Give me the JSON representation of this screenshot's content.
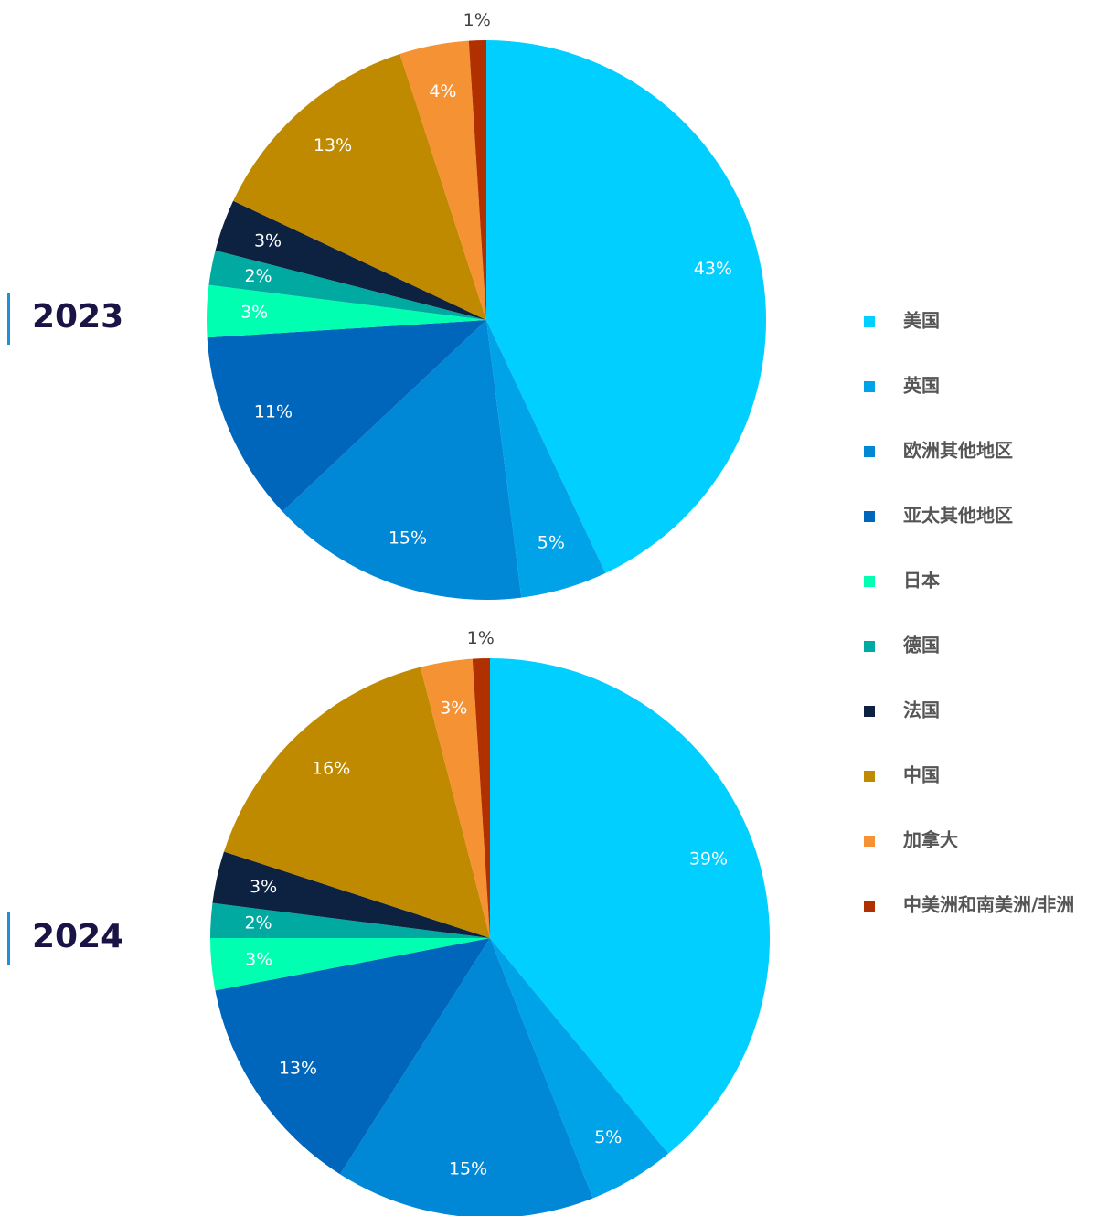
{
  "chart_data": [
    {
      "type": "pie",
      "title": "2023",
      "categories": [
        "美国",
        "英国",
        "欧洲其他地区",
        "亚太其他地区",
        "日本",
        "德国",
        "法国",
        "中国",
        "加拿大",
        "中美洲和南美洲/非洲"
      ],
      "values": [
        43,
        5,
        15,
        11,
        3,
        2,
        3,
        13,
        4,
        1
      ],
      "value_labels": [
        "43%",
        "5%",
        "15%",
        "11%",
        "3%",
        "2%",
        "3%",
        "13%",
        "4%",
        "1%"
      ],
      "colors": [
        "#00cfff",
        "#00a3e8",
        "#0087d6",
        "#0066bb",
        "#00ffb0",
        "#00aaa0",
        "#0d2240",
        "#bf8a00",
        "#f59233",
        "#b03000"
      ]
    },
    {
      "type": "pie",
      "title": "2024",
      "categories": [
        "美国",
        "英国",
        "欧洲其他地区",
        "亚太其他地区",
        "日本",
        "德国",
        "法国",
        "中国",
        "加拿大",
        "中美洲和南美洲/非洲"
      ],
      "values": [
        39,
        5,
        15,
        13,
        3,
        2,
        3,
        16,
        3,
        1
      ],
      "value_labels": [
        "39%",
        "5%",
        "15%",
        "13%",
        "3%",
        "2%",
        "3%",
        "16%",
        "3%",
        "1%"
      ],
      "colors": [
        "#00cfff",
        "#00a3e8",
        "#0087d6",
        "#0066bb",
        "#00ffb0",
        "#00aaa0",
        "#0d2240",
        "#bf8a00",
        "#f59233",
        "#b03000"
      ]
    }
  ]
}
